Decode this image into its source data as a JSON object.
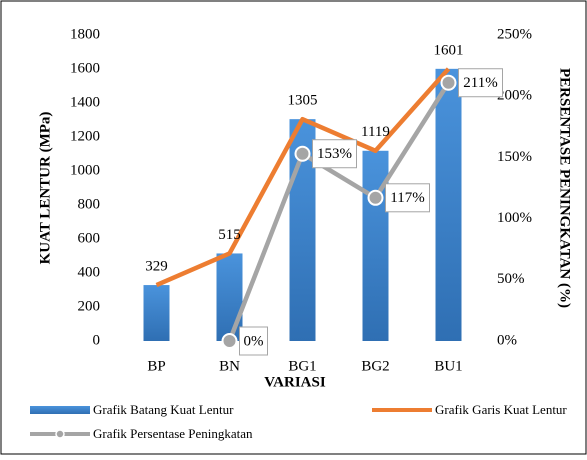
{
  "chart_data": {
    "type": "bar-line",
    "x_label": "VARIASI",
    "y_label": "KUAT LENTUR (MPa)",
    "y2_label": "PERSENTASE PENINGKATAN (%)",
    "categories": [
      "BP",
      "BN",
      "BG1",
      "BG2",
      "BU1"
    ],
    "series": [
      {
        "name": "Grafik Batang Kuat Lentur",
        "type": "bar",
        "color": "#3f88d0",
        "values": [
          329,
          515,
          1305,
          1119,
          1601
        ]
      },
      {
        "name": "Grafik Garis Kuat Lentur",
        "type": "line",
        "color": "#ed7d31",
        "values": [
          329,
          515,
          1305,
          1119,
          1601
        ]
      },
      {
        "name": "Grafik Persentase Peningkatan",
        "type": "line",
        "axis": "y2",
        "color": "#a5a5a5",
        "values": [
          null,
          0,
          153,
          117,
          211
        ],
        "value_labels": [
          null,
          "0%",
          "153%",
          "117%",
          "211%"
        ]
      }
    ],
    "ylim": [
      0,
      1800
    ],
    "yticks": [
      0,
      200,
      400,
      600,
      800,
      1000,
      1200,
      1400,
      1600,
      1800
    ],
    "y2lim": [
      0,
      250
    ],
    "y2ticks": [
      {
        "value": 0,
        "label": "0%"
      },
      {
        "value": 50,
        "label": "50%"
      },
      {
        "value": 100,
        "label": "100%"
      },
      {
        "value": 150,
        "label": "150%"
      },
      {
        "value": 200,
        "label": "200%"
      },
      {
        "value": 250,
        "label": "250%"
      }
    ]
  }
}
